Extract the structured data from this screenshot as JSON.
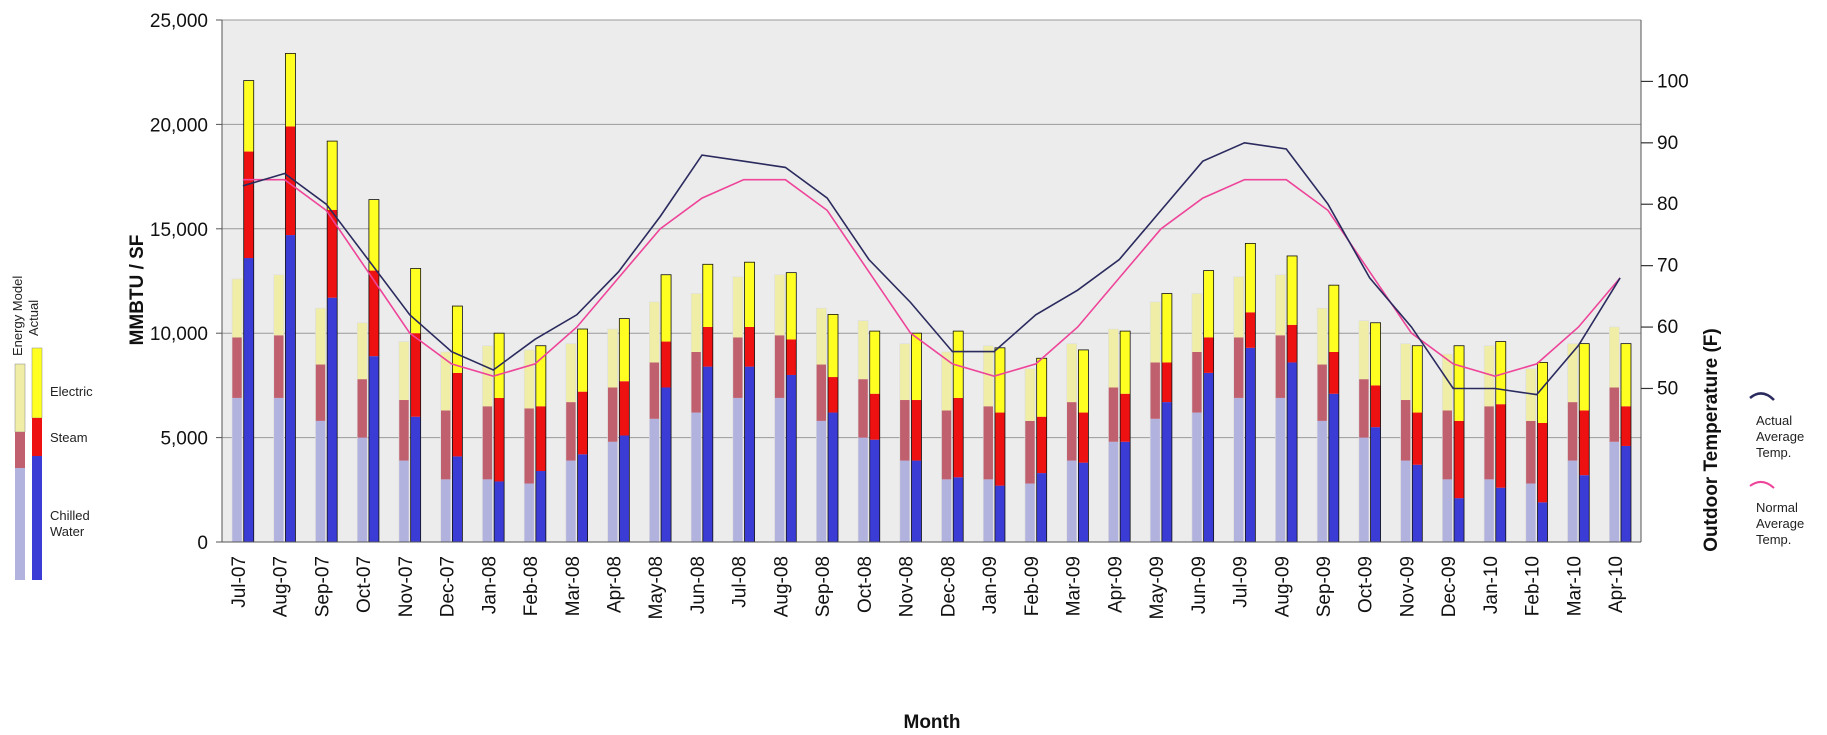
{
  "chart_data": {
    "type": "bar",
    "xlabel": "Month",
    "ylabel": "MMBTU / SF",
    "y2label": "Outdoor Temperature (F)",
    "ylim": [
      0,
      25000
    ],
    "y2lim": [
      25,
      110
    ],
    "yticks": [
      "0",
      "5,000",
      "10,000",
      "15,000",
      "20,000",
      "25,000"
    ],
    "y2ticks": [
      50,
      60,
      70,
      80,
      90,
      100
    ],
    "grid": true,
    "legend_left": {
      "header_model": "Energy Model",
      "header_actual": "Actual",
      "items": [
        "Electric",
        "Steam",
        "Chilled Water"
      ]
    },
    "legend_right": [
      "Actual Average Temp.",
      "Normal Average Temp."
    ],
    "colors": {
      "plot_bg": "#ececec",
      "actual_chilled_water": "#3b3bd6",
      "actual_steam": "#ee1111",
      "actual_electric": "#ffff22",
      "model_chilled_water": "#b2b2de",
      "model_steam": "#c0606e",
      "model_electric": "#f0eea6",
      "actual_temp_line": "#2a2a5e",
      "normal_temp_line": "#ee4499"
    },
    "categories": [
      "Jul-07",
      "Aug-07",
      "Sep-07",
      "Oct-07",
      "Nov-07",
      "Dec-07",
      "Jan-08",
      "Feb-08",
      "Mar-08",
      "Apr-08",
      "May-08",
      "Jun-08",
      "Jul-08",
      "Aug-08",
      "Sep-08",
      "Oct-08",
      "Nov-08",
      "Dec-08",
      "Jan-09",
      "Feb-09",
      "Mar-09",
      "Apr-09",
      "May-09",
      "Jun-09",
      "Jul-09",
      "Aug-09",
      "Sep-09",
      "Oct-09",
      "Nov-09",
      "Dec-09",
      "Jan-10",
      "Feb-10",
      "Mar-10",
      "Apr-10"
    ],
    "series": [
      {
        "name": "Energy Model Chilled Water",
        "values": [
          6900,
          6900,
          5800,
          5000,
          3900,
          3000,
          3000,
          2800,
          3900,
          4800,
          5900,
          6200,
          6900,
          6900,
          5800,
          5000,
          3900,
          3000,
          3000,
          2800,
          3900,
          4800,
          5900,
          6200,
          6900,
          6900,
          5800,
          5000,
          3900,
          3000,
          3000,
          2800,
          3900,
          4800
        ]
      },
      {
        "name": "Energy Model Steam",
        "values": [
          2900,
          3000,
          2700,
          2800,
          2900,
          3300,
          3500,
          3600,
          2800,
          2600,
          2700,
          2900,
          2900,
          3000,
          2700,
          2800,
          2900,
          3300,
          3500,
          3000,
          2800,
          2600,
          2700,
          2900,
          2900,
          3000,
          2700,
          2800,
          2900,
          3300,
          3500,
          3000,
          2800,
          2600
        ]
      },
      {
        "name": "Energy Model Electric",
        "values": [
          2800,
          2900,
          2700,
          2700,
          2800,
          2800,
          2900,
          2800,
          2800,
          2800,
          2900,
          2800,
          2900,
          2900,
          2700,
          2800,
          2700,
          2800,
          2900,
          2500,
          2800,
          2800,
          2900,
          2800,
          2900,
          2900,
          2700,
          2800,
          2700,
          2700,
          2900,
          2500,
          2800,
          2900
        ]
      },
      {
        "name": "Actual Chilled Water",
        "values": [
          13600,
          14700,
          11700,
          8900,
          6000,
          4100,
          2900,
          3400,
          4200,
          5100,
          7400,
          8400,
          8400,
          8000,
          6200,
          4900,
          3900,
          3100,
          2700,
          3300,
          3800,
          4800,
          6700,
          8100,
          9300,
          8600,
          7100,
          5500,
          3700,
          2100,
          2600,
          1900,
          3200,
          4600
        ]
      },
      {
        "name": "Actual Steam",
        "values": [
          5100,
          5200,
          4200,
          4100,
          4000,
          4000,
          4000,
          3100,
          3000,
          2600,
          2200,
          1900,
          1900,
          1700,
          1700,
          2200,
          2900,
          3800,
          3500,
          2700,
          2400,
          2300,
          1900,
          1700,
          1700,
          1800,
          2000,
          2000,
          2500,
          3700,
          4000,
          3800,
          3100,
          1900
        ]
      },
      {
        "name": "Actual Electric",
        "values": [
          3400,
          3500,
          3300,
          3400,
          3100,
          3200,
          3100,
          2900,
          3000,
          3000,
          3200,
          3000,
          3100,
          3200,
          3000,
          3000,
          3200,
          3200,
          3100,
          2800,
          3000,
          3000,
          3300,
          3200,
          3300,
          3300,
          3200,
          3000,
          3200,
          3600,
          3000,
          2900,
          3200,
          3000
        ]
      }
    ],
    "temperature": {
      "actual_average": [
        83,
        85,
        80,
        71,
        62,
        56,
        53,
        58,
        62,
        69,
        78,
        88,
        87,
        86,
        81,
        71,
        64,
        56,
        56,
        62,
        66,
        71,
        79,
        87,
        90,
        89,
        80,
        68,
        60,
        50,
        50,
        49,
        57,
        68
      ],
      "normal_average": [
        84,
        84,
        79,
        69,
        59,
        54,
        52,
        54,
        60,
        68,
        76,
        81,
        84,
        84,
        79,
        69,
        59,
        54,
        52,
        54,
        60,
        68,
        76,
        81,
        84,
        84,
        79,
        69,
        59,
        54,
        52,
        54,
        60,
        68
      ]
    }
  }
}
